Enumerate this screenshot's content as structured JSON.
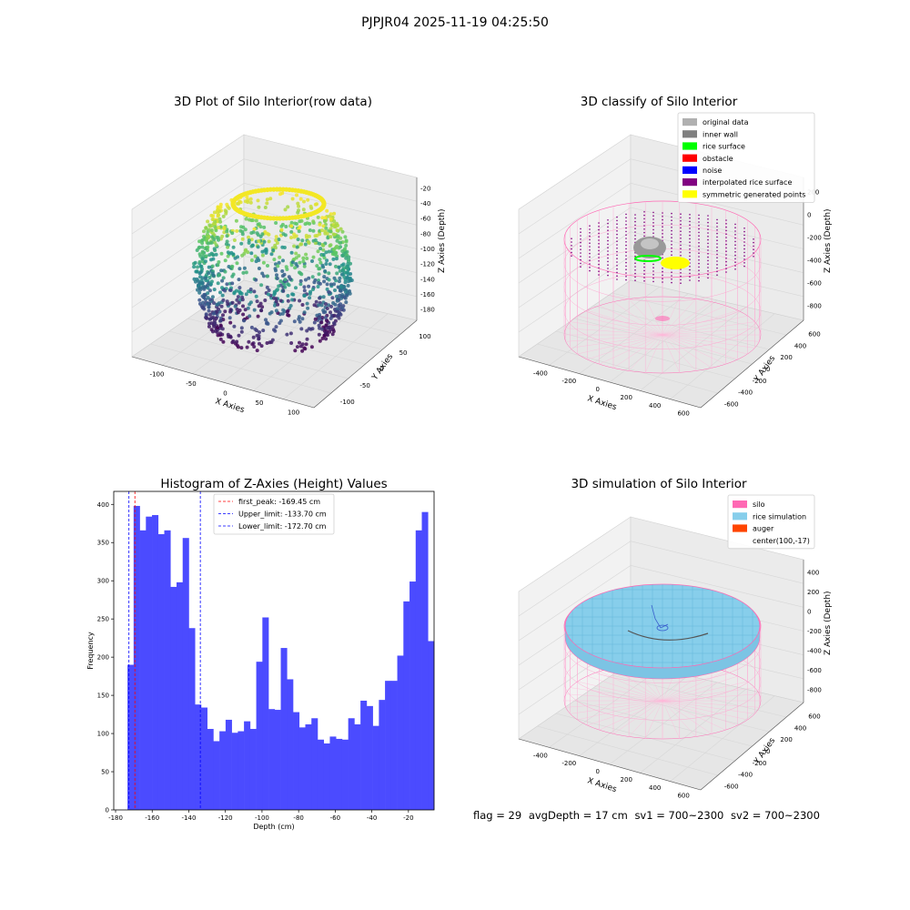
{
  "figure_title": "PJPJR04 2025-11-19 04:25:50",
  "footer": {
    "flag": "flag = 29",
    "avg_depth": "avgDepth = 17 cm",
    "sv1": "sv1 = 700~2300",
    "sv2": "sv2 = 700~2300"
  },
  "colors": {
    "histogram_bar": "#4b4bff",
    "first_peak": "#ff0000",
    "limits": "#0000ff",
    "silo": "#ff69b4",
    "rice_simulation": "#87ceeb",
    "auger": "#ff4500",
    "original_data": "#b0b0b0",
    "inner_wall": "#808080",
    "rice_surface": "#00ff00",
    "obstacle": "#ff0000",
    "noise": "#0000ff",
    "interpolated_rice_surface": "#800080",
    "symmetric_generated_points": "#ffff00"
  },
  "chart_data": [
    {
      "type": "scatter",
      "subtype": "3d-scatter",
      "title": "3D Plot of Silo Interior(row data)",
      "xlabel": "X Axies",
      "ylabel": "Y Axies",
      "zlabel": "Z Axies (Depth)",
      "x_ticks": [
        "-100",
        "-50",
        "0",
        "50",
        "100"
      ],
      "y_ticks": [
        "100",
        "50",
        "0",
        "-50",
        "-100"
      ],
      "z_ticks": [
        "-20",
        "-40",
        "-60",
        "-80",
        "-100",
        "-120",
        "-140",
        "-160",
        "-180"
      ],
      "colormap": "viridis"
    },
    {
      "type": "scatter",
      "subtype": "3d-scatter",
      "title": "3D classify of Silo Interior",
      "xlabel": "X Axies",
      "ylabel": "Y Axies",
      "zlabel": "Z Axies (Depth)",
      "x_ticks": [
        "-400",
        "-200",
        "0",
        "200",
        "400",
        "600"
      ],
      "y_ticks": [
        "600",
        "400",
        "200",
        "0",
        "-200",
        "-400",
        "-600"
      ],
      "z_ticks": [
        "200",
        "0",
        "-200",
        "-400",
        "-600",
        "-800"
      ],
      "legend": [
        {
          "label": "original data",
          "color": "#b0b0b0"
        },
        {
          "label": "inner wall",
          "color": "#808080"
        },
        {
          "label": "rice surface",
          "color": "#00ff00"
        },
        {
          "label": "obstacle",
          "color": "#ff0000"
        },
        {
          "label": "noise",
          "color": "#0000ff"
        },
        {
          "label": "interpolated rice surface",
          "color": "#800080"
        },
        {
          "label": "symmetric generated points",
          "color": "#ffff00"
        }
      ],
      "legend_position": "top-right"
    },
    {
      "type": "bar",
      "subtype": "histogram",
      "title": "Histogram of Z-Axies (Height) Values",
      "xlabel": "Depth (cm)",
      "ylabel": "Frequency",
      "xlim": [
        -181,
        -6
      ],
      "ylim": [
        0,
        417
      ],
      "x_ticks": [
        -180,
        -160,
        -140,
        -120,
        -100,
        -80,
        -60,
        -40,
        -20
      ],
      "y_ticks": [
        0,
        50,
        100,
        150,
        200,
        250,
        300,
        350,
        400
      ],
      "bin_start": -173.5,
      "bin_width": 3.35,
      "values": [
        190,
        398,
        366,
        384,
        386,
        361,
        366,
        292,
        298,
        356,
        238,
        138,
        134,
        106,
        90,
        103,
        118,
        101,
        103,
        116,
        106,
        194,
        252,
        132,
        131,
        212,
        171,
        128,
        108,
        112,
        120,
        92,
        87,
        96,
        93,
        92,
        120,
        112,
        143,
        136,
        110,
        144,
        169,
        169,
        202,
        273,
        299,
        366,
        390,
        221
      ],
      "vlines": [
        {
          "name": "first_peak: -169.45 cm",
          "value": -169.45,
          "color": "#ff0000"
        },
        {
          "name": "Upper_limit: -133.70 cm",
          "value": -133.7,
          "color": "#0000ff"
        },
        {
          "name": "Lower_limit: -172.70 cm",
          "value": -172.7,
          "color": "#0000ff"
        }
      ],
      "legend_position": "top-center"
    },
    {
      "type": "scatter",
      "subtype": "3d-surface",
      "title": "3D simulation of Silo Interior",
      "xlabel": "X Axies",
      "ylabel": "Y Axies",
      "zlabel": "Z Axies (Depth)",
      "x_ticks": [
        "-400",
        "-200",
        "0",
        "200",
        "400",
        "600"
      ],
      "y_ticks": [
        "600",
        "400",
        "200",
        "0",
        "-200",
        "-400",
        "-600"
      ],
      "z_ticks": [
        "400",
        "200",
        "0",
        "-200",
        "-400",
        "-600",
        "-800"
      ],
      "legend": [
        {
          "label": "silo",
          "color": "#ff69b4"
        },
        {
          "label": "rice simulation",
          "color": "#87ceeb"
        },
        {
          "label": "auger",
          "color": "#ff4500"
        },
        {
          "label": "center(100,-17)",
          "color": ""
        }
      ],
      "legend_position": "top-right"
    }
  ]
}
